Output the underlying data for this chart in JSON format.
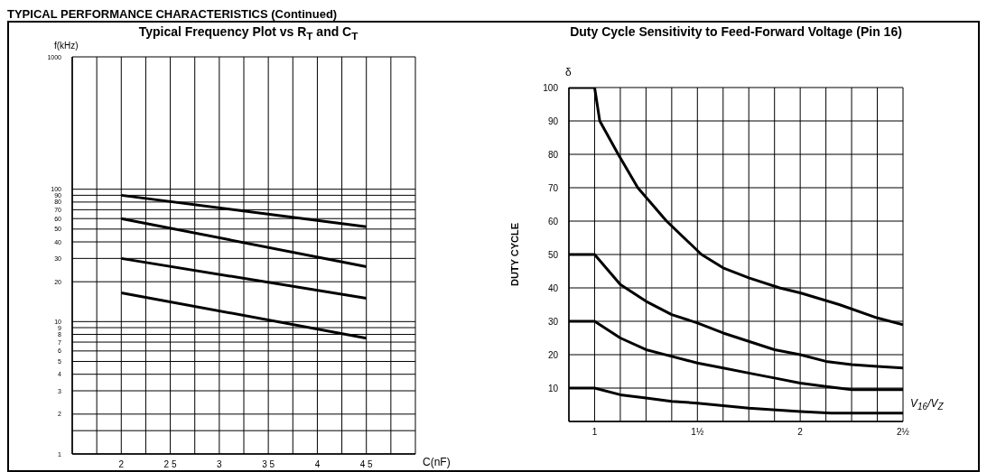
{
  "chart_data": [
    {
      "type": "line",
      "title": "Typical Frequency Plot vs R$_{T}$ and C$_{T}$",
      "xlabel": "C(nF)",
      "ylabel": "f(kHz)",
      "annotations": [
        "TYPICAL PERFORMANCE CHARACTERISTICS (Continued)"
      ],
      "log": "y",
      "grid": true,
      "marker": "none",
      "line_style": "solid",
      "xlim": [
        1.5,
        5
      ],
      "xticks": [
        {
          "value": 1.5,
          "label": null
        },
        {
          "value": 1.75,
          "label": null
        },
        2,
        {
          "value": 2.25,
          "label": null
        },
        {
          "value": 2.5,
          "label": "2 5"
        },
        {
          "value": 2.75,
          "label": null
        },
        3,
        {
          "value": 3.25,
          "label": null
        },
        {
          "value": 3.5,
          "label": "3 5"
        },
        {
          "value": 3.75,
          "label": null
        },
        4,
        {
          "value": 4.25,
          "label": null
        },
        {
          "value": 4.5,
          "label": "4 5"
        },
        {
          "value": 4.75,
          "label": null
        },
        {
          "value": 5,
          "label": null
        }
      ],
      "ylim": [
        1,
        1000
      ],
      "yticks": [
        1,
        {
          "value": 1.5,
          "label": null
        },
        2,
        3,
        4,
        5,
        6,
        7,
        8,
        9,
        10,
        20,
        30,
        40,
        50,
        60,
        70,
        80,
        90,
        100,
        1000
      ],
      "series": [
        {
          "color": "#000000",
          "x": [
            2,
            4.5
          ],
          "values": [
            90,
            52
          ]
        },
        {
          "color": "#000000",
          "x": [
            2,
            4.5
          ],
          "values": [
            60,
            26
          ]
        },
        {
          "color": "#000000",
          "x": [
            2,
            4.5
          ],
          "values": [
            30,
            15
          ]
        },
        {
          "color": "#000000",
          "x": [
            2,
            4.5
          ],
          "values": [
            16.5,
            7.5
          ]
        }
      ]
    },
    {
      "type": "line",
      "title": "Duty Cycle Sensitivity to Feed-Forward Voltage (Pin 16)",
      "xlabel": "V$_{16}$/V$_{Z}$",
      "ylabel": "DUTY CYCLE",
      "annotations": [
        "δ"
      ],
      "grid": true,
      "marker": "none",
      "line_style": "solid",
      "xlim": [
        0.875,
        2.5
      ],
      "xticks": [
        {
          "value": 0.875,
          "label": null
        },
        1,
        {
          "value": 1.125,
          "label": null
        },
        {
          "value": 1.25,
          "label": null
        },
        {
          "value": 1.375,
          "label": null
        },
        {
          "value": 1.5,
          "label": "1½"
        },
        {
          "value": 1.625,
          "label": null
        },
        {
          "value": 1.75,
          "label": null
        },
        {
          "value": 1.875,
          "label": null
        },
        2,
        {
          "value": 2.125,
          "label": null
        },
        {
          "value": 2.25,
          "label": null
        },
        {
          "value": 2.375,
          "label": null
        },
        {
          "value": 2.5,
          "label": "2½"
        }
      ],
      "ylim": [
        0,
        100
      ],
      "yticks": [
        10,
        20,
        30,
        40,
        50,
        60,
        70,
        80,
        90,
        100
      ],
      "series": [
        {
          "color": "#000000",
          "x": [
            0.875,
            1,
            1.025,
            1.115,
            1.21,
            1.35,
            1.52,
            1.625,
            1.75,
            1.9,
            2,
            2.19,
            2.375,
            2.5
          ],
          "values": [
            100,
            100,
            90,
            80,
            70,
            60,
            50,
            46,
            43,
            40,
            38.5,
            35,
            31,
            29
          ]
        },
        {
          "color": "#000000",
          "x": [
            0.875,
            1,
            1.125,
            1.25,
            1.375,
            1.5,
            1.625,
            1.75,
            1.875,
            2,
            2.125,
            2.25,
            2.375,
            2.5
          ],
          "values": [
            50,
            50,
            41,
            36,
            32,
            29.5,
            26.5,
            24,
            21.5,
            20,
            18,
            17,
            16.5,
            16
          ]
        },
        {
          "color": "#000000",
          "x": [
            0.875,
            1,
            1.125,
            1.25,
            1.375,
            1.5,
            1.625,
            1.75,
            1.875,
            2,
            2.125,
            2.25,
            2.5
          ],
          "values": [
            30,
            30,
            25,
            21.5,
            19.5,
            17.5,
            16,
            14.5,
            13,
            11.5,
            10.5,
            9.5,
            9.5
          ]
        },
        {
          "color": "#000000",
          "x": [
            0.875,
            1,
            1.125,
            1.25,
            1.375,
            1.5,
            1.75,
            2,
            2.15,
            2.5
          ],
          "values": [
            10,
            10,
            8,
            7,
            6,
            5.5,
            4,
            3,
            2.5,
            2.5
          ]
        }
      ]
    }
  ]
}
